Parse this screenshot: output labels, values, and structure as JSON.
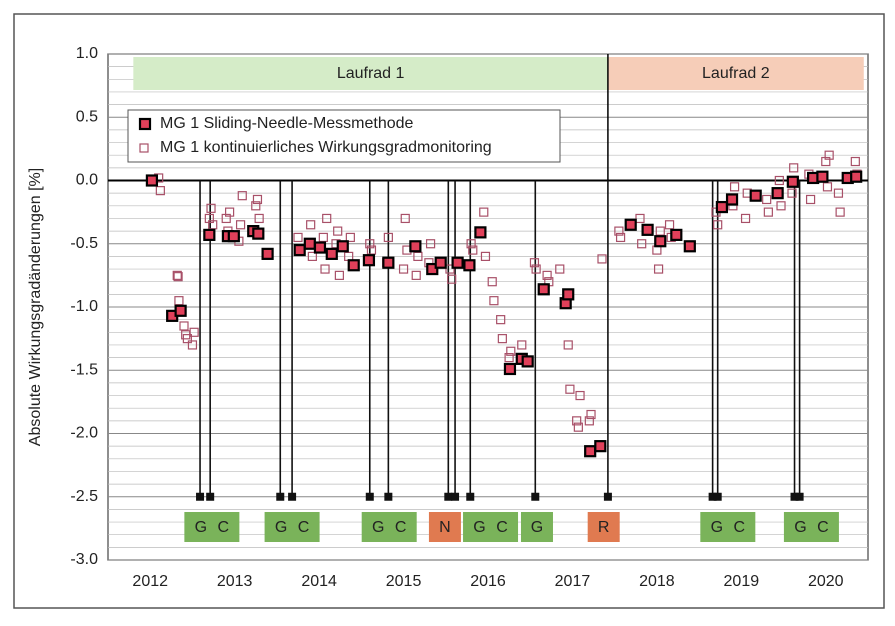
{
  "chart_data": {
    "type": "scatter",
    "ylabel": "Absolute Wirkungsgradänderungen [%]",
    "xlim": [
      2012,
      2021
    ],
    "ylim": [
      -3.0,
      1.0
    ],
    "xticks": [
      {
        "value": 2012.5,
        "label": "2012"
      },
      {
        "value": 2013.5,
        "label": "2013"
      },
      {
        "value": 2014.5,
        "label": "2014"
      },
      {
        "value": 2015.5,
        "label": "2015"
      },
      {
        "value": 2016.5,
        "label": "2016"
      },
      {
        "value": 2017.5,
        "label": "2017"
      },
      {
        "value": 2018.5,
        "label": "2018"
      },
      {
        "value": 2019.5,
        "label": "2019"
      },
      {
        "value": 2020.5,
        "label": "2020"
      }
    ],
    "yticks": [
      {
        "value": 1.0,
        "label": "1.0"
      },
      {
        "value": 0.5,
        "label": "0.5"
      },
      {
        "value": 0.0,
        "label": "0.0"
      },
      {
        "value": -0.5,
        "label": "-0.5"
      },
      {
        "value": -1.0,
        "label": "-1.0"
      },
      {
        "value": -1.5,
        "label": "-1.5"
      },
      {
        "value": -2.0,
        "label": "-2.0"
      },
      {
        "value": -2.5,
        "label": "-2.5"
      },
      {
        "value": -3.0,
        "label": "-3.0"
      }
    ],
    "grid": true,
    "legend": "upper left",
    "series": [
      {
        "name": "MG 1 Sliding-Needle-Messmethode",
        "color": "#e0405a",
        "x": [
          2012.52,
          2012.76,
          2012.86,
          2013.2,
          2013.42,
          2013.49,
          2013.72,
          2013.78,
          2013.89,
          2014.27,
          2014.39,
          2014.51,
          2014.65,
          2014.78,
          2014.91,
          2015.09,
          2015.32,
          2015.64,
          2015.84,
          2015.94,
          2016.14,
          2016.28,
          2016.41,
          2016.76,
          2016.9,
          2016.97,
          2017.16,
          2017.42,
          2017.45,
          2017.71,
          2017.83,
          2018.19,
          2018.39,
          2018.54,
          2018.73,
          2018.89,
          2019.27,
          2019.39,
          2019.67,
          2019.93,
          2020.11,
          2020.35,
          2020.46,
          2020.76,
          2020.86
        ],
        "values": [
          0.0,
          -1.07,
          -1.03,
          -0.43,
          -0.44,
          -0.44,
          -0.4,
          -0.42,
          -0.58,
          -0.55,
          -0.5,
          -0.53,
          -0.58,
          -0.52,
          -0.67,
          -0.63,
          -0.65,
          -0.52,
          -0.7,
          -0.65,
          -0.65,
          -0.67,
          -0.41,
          -1.49,
          -1.41,
          -1.43,
          -0.86,
          -0.97,
          -0.9,
          -2.14,
          -2.1,
          -0.35,
          -0.39,
          -0.48,
          -0.43,
          -0.52,
          -0.21,
          -0.15,
          -0.12,
          -0.1,
          -0.01,
          0.02,
          0.03,
          0.02,
          0.03
        ]
      },
      {
        "name": "MG 1 kontinuierliches Wirkungsgradmonitoring",
        "color": "#a85068",
        "x": [
          2012.6,
          2012.62,
          2012.82,
          2012.83,
          2012.84,
          2012.9,
          2012.92,
          2012.94,
          2013.0,
          2013.02,
          2013.2,
          2013.22,
          2013.24,
          2013.4,
          2013.42,
          2013.44,
          2013.55,
          2013.57,
          2013.59,
          2013.75,
          2013.77,
          2013.79,
          2014.25,
          2014.27,
          2014.4,
          2014.42,
          2014.55,
          2014.57,
          2014.59,
          2014.7,
          2014.72,
          2014.74,
          2014.85,
          2014.87,
          2015.1,
          2015.12,
          2015.3,
          2015.32,
          2015.5,
          2015.52,
          2015.54,
          2015.65,
          2015.67,
          2015.8,
          2015.82,
          2016.05,
          2016.07,
          2016.3,
          2016.32,
          2016.45,
          2016.47,
          2016.55,
          2016.57,
          2016.65,
          2016.67,
          2016.75,
          2016.77,
          2016.9,
          2017.05,
          2017.07,
          2017.2,
          2017.22,
          2017.35,
          2017.45,
          2017.47,
          2017.55,
          2017.57,
          2017.59,
          2017.7,
          2017.72,
          2017.85,
          2018.05,
          2018.07,
          2018.3,
          2018.32,
          2018.5,
          2018.52,
          2018.54,
          2018.65,
          2018.67,
          2019.2,
          2019.22,
          2019.4,
          2019.42,
          2019.55,
          2019.57,
          2019.8,
          2019.82,
          2019.95,
          2019.97,
          2020.1,
          2020.12,
          2020.3,
          2020.32,
          2020.5,
          2020.52,
          2020.54,
          2020.65,
          2020.67,
          2020.85,
          2020.87
        ],
        "values": [
          0.02,
          -0.08,
          -0.75,
          -0.76,
          -0.95,
          -1.15,
          -1.22,
          -1.25,
          -1.3,
          -1.2,
          -0.3,
          -0.22,
          -0.35,
          -0.3,
          -0.4,
          -0.25,
          -0.48,
          -0.35,
          -0.12,
          -0.2,
          -0.15,
          -0.3,
          -0.45,
          -0.55,
          -0.35,
          -0.6,
          -0.45,
          -0.7,
          -0.3,
          -0.5,
          -0.4,
          -0.75,
          -0.6,
          -0.45,
          -0.5,
          -0.55,
          -0.65,
          -0.45,
          -0.7,
          -0.3,
          -0.55,
          -0.75,
          -0.6,
          -0.65,
          -0.5,
          -0.7,
          -0.78,
          -0.5,
          -0.55,
          -0.25,
          -0.6,
          -0.8,
          -0.95,
          -1.1,
          -1.25,
          -1.4,
          -1.35,
          -1.3,
          -0.65,
          -0.7,
          -0.75,
          -0.8,
          -0.7,
          -1.3,
          -1.65,
          -1.9,
          -1.95,
          -1.7,
          -1.9,
          -1.85,
          -0.62,
          -0.4,
          -0.45,
          -0.3,
          -0.5,
          -0.55,
          -0.7,
          -0.4,
          -0.35,
          -0.45,
          -0.25,
          -0.35,
          -0.2,
          -0.05,
          -0.3,
          -0.1,
          -0.15,
          -0.25,
          0.0,
          -0.2,
          -0.1,
          0.1,
          0.05,
          -0.15,
          0.15,
          -0.05,
          0.2,
          -0.1,
          -0.25,
          0.15,
          0.05
        ]
      }
    ],
    "bands": [
      {
        "label": "Laufrad 1",
        "from": 2012.3,
        "to": 2017.92,
        "color": "#d5ecc8"
      },
      {
        "label": "Laufrad 2",
        "from": 2017.92,
        "to": 2020.95,
        "color": "#f6cdb8"
      }
    ],
    "events": [
      2013.09,
      2013.21,
      2014.04,
      2014.18,
      2015.1,
      2015.32,
      2016.03,
      2016.11,
      2016.29,
      2017.06,
      2017.92,
      2019.16,
      2019.22,
      2020.13,
      2020.19
    ],
    "event_labels": [
      {
        "label": "G C",
        "x": 2013.23,
        "color": "#7ab35a"
      },
      {
        "label": "G C",
        "x": 2014.18,
        "color": "#7ab35a"
      },
      {
        "label": "G C",
        "x": 2015.33,
        "color": "#7ab35a"
      },
      {
        "label": "N",
        "x": 2015.99,
        "color": "#e07a50"
      },
      {
        "label": "G C",
        "x": 2016.53,
        "color": "#7ab35a"
      },
      {
        "label": "G",
        "x": 2017.08,
        "color": "#7ab35a"
      },
      {
        "label": "R",
        "x": 2017.87,
        "color": "#e07a50"
      },
      {
        "label": "G C",
        "x": 2019.34,
        "color": "#7ab35a"
      },
      {
        "label": "G C",
        "x": 2020.33,
        "color": "#7ab35a"
      }
    ]
  }
}
